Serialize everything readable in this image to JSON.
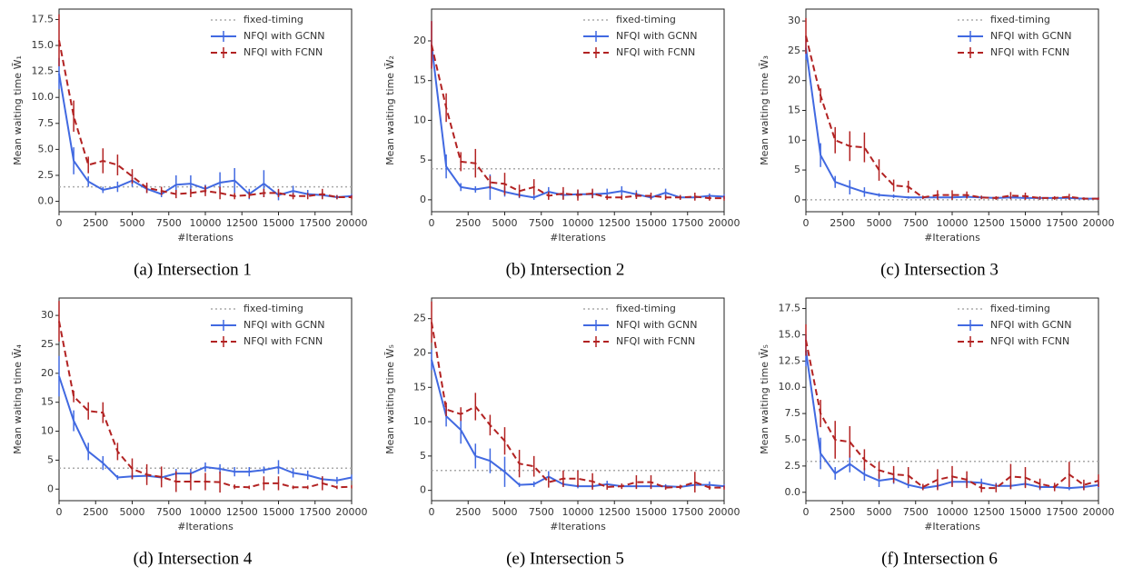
{
  "chart_data": [
    {
      "type": "line",
      "caption": "(a) Intersection 1",
      "y_label": "Mean waiting time W̄₁",
      "x_label": "#Iterations",
      "legend": "upper right",
      "x": [
        0,
        1000,
        2000,
        3000,
        4000,
        5000,
        6000,
        7000,
        8000,
        9000,
        10000,
        11000,
        12000,
        13000,
        14000,
        15000,
        16000,
        17000,
        18000,
        19000,
        20000
      ],
      "xlim": [
        0,
        20000
      ],
      "xticks": [
        0,
        2500,
        5000,
        7500,
        10000,
        12500,
        15000,
        17500,
        20000
      ],
      "ylim": [
        -1,
        18.5
      ],
      "yticks": [
        {
          "value": 0,
          "label": "0.0"
        },
        2.5,
        {
          "value": 5,
          "label": "5.0"
        },
        7.5,
        {
          "value": 10,
          "label": "10.0"
        },
        12.5,
        {
          "value": 15,
          "label": "15.0"
        },
        17.5
      ],
      "series": [
        {
          "name": "fixed-timing",
          "color": "#aaaaaa",
          "linestyle": "dotted",
          "values": [
            1.4,
            1.4,
            1.4,
            1.4,
            1.4,
            1.4,
            1.4,
            1.4,
            1.4,
            1.4,
            1.4,
            1.4,
            1.4,
            1.4,
            1.4,
            1.4,
            1.4,
            1.4,
            1.4,
            1.4,
            1.4
          ]
        },
        {
          "name": "NFQI with GCNN",
          "color": "#4169e1",
          "linestyle": "solid",
          "values": [
            12.3,
            3.9,
            1.9,
            1.1,
            1.4,
            2.0,
            1.2,
            0.7,
            1.6,
            1.7,
            1.2,
            1.8,
            2.0,
            0.7,
            1.7,
            0.6,
            1.0,
            0.7,
            0.6,
            0.4,
            0.5
          ],
          "errors": [
            1.5,
            1.3,
            0.5,
            0.3,
            0.5,
            0.6,
            0.4,
            0.3,
            0.9,
            0.8,
            0.4,
            1.0,
            1.2,
            0.5,
            1.3,
            0.5,
            0.5,
            0.4,
            0.3,
            0.2,
            0.2
          ]
        },
        {
          "name": "NFQI with FCNN",
          "color": "#b22222",
          "linestyle": "dashed",
          "values": [
            15.5,
            8.2,
            3.5,
            3.9,
            3.5,
            2.4,
            1.3,
            1.0,
            0.7,
            0.8,
            1.0,
            0.8,
            0.5,
            0.6,
            0.8,
            0.8,
            0.5,
            0.5,
            0.7,
            0.4,
            0.4
          ],
          "errors": [
            2.5,
            1.5,
            0.8,
            1.2,
            1.0,
            0.7,
            0.5,
            0.4,
            0.4,
            0.4,
            0.5,
            0.6,
            0.3,
            0.3,
            0.4,
            0.4,
            0.3,
            0.3,
            0.5,
            0.2,
            0.2
          ]
        }
      ]
    },
    {
      "type": "line",
      "caption": "(b) Intersection 2",
      "y_label": "Mean waiting time W̄₂",
      "x_label": "#Iterations",
      "legend": "upper right",
      "x": [
        0,
        1000,
        2000,
        3000,
        4000,
        5000,
        6000,
        7000,
        8000,
        9000,
        10000,
        11000,
        12000,
        13000,
        14000,
        15000,
        16000,
        17000,
        18000,
        19000,
        20000
      ],
      "xlim": [
        0,
        20000
      ],
      "xticks": [
        0,
        2500,
        5000,
        7500,
        10000,
        12500,
        15000,
        17500,
        20000
      ],
      "ylim": [
        -1.5,
        24
      ],
      "yticks": [
        0,
        5,
        10,
        15,
        20
      ],
      "series": [
        {
          "name": "fixed-timing",
          "color": "#aaaaaa",
          "linestyle": "dotted",
          "values": [
            3.9,
            3.9,
            3.9,
            3.9,
            3.9,
            3.9,
            3.9,
            3.9,
            3.9,
            3.9,
            3.9,
            3.9,
            3.9,
            3.9,
            3.9,
            3.9,
            3.9,
            3.9,
            3.9,
            3.9,
            3.9
          ]
        },
        {
          "name": "NFQI with GCNN",
          "color": "#4169e1",
          "linestyle": "solid",
          "values": [
            19.5,
            4.2,
            1.6,
            1.3,
            1.6,
            1.0,
            0.6,
            0.3,
            1.0,
            0.6,
            0.7,
            0.7,
            0.8,
            1.1,
            0.7,
            0.3,
            0.9,
            0.3,
            0.3,
            0.5,
            0.4
          ],
          "errors": [
            3,
            1.5,
            0.5,
            0.4,
            1.6,
            0.6,
            0.4,
            0.3,
            0.6,
            0.5,
            0.5,
            0.5,
            0.6,
            0.6,
            0.5,
            0.3,
            0.5,
            0.3,
            0.3,
            0.3,
            0.3
          ]
        },
        {
          "name": "NFQI with FCNN",
          "color": "#b22222",
          "linestyle": "dashed",
          "values": [
            19.5,
            11.6,
            4.8,
            4.6,
            2.2,
            2.0,
            1.1,
            1.6,
            0.5,
            0.8,
            0.6,
            0.8,
            0.3,
            0.3,
            0.5,
            0.5,
            0.3,
            0.3,
            0.4,
            0.2,
            0.2
          ],
          "errors": [
            3,
            1.8,
            1.2,
            1.8,
            0.8,
            1.4,
            0.8,
            1.0,
            0.5,
            0.8,
            0.7,
            0.6,
            0.3,
            0.3,
            0.4,
            0.4,
            0.3,
            0.3,
            0.5,
            0.3,
            0.3
          ]
        }
      ]
    },
    {
      "type": "line",
      "caption": "(c) Intersection 3",
      "y_label": "Mean waiting time W̄₃",
      "x_label": "#Iterations",
      "legend": "upper right",
      "x": [
        0,
        1000,
        2000,
        3000,
        4000,
        5000,
        6000,
        7000,
        8000,
        9000,
        10000,
        11000,
        12000,
        13000,
        14000,
        15000,
        16000,
        17000,
        18000,
        19000,
        20000
      ],
      "xlim": [
        0,
        20000
      ],
      "xticks": [
        0,
        2500,
        5000,
        7500,
        10000,
        12500,
        15000,
        17500,
        20000
      ],
      "ylim": [
        -2,
        32
      ],
      "yticks": [
        0,
        5,
        10,
        15,
        20,
        25,
        30
      ],
      "series": [
        {
          "name": "fixed-timing",
          "color": "#aaaaaa",
          "linestyle": "dotted",
          "values": [
            0,
            0,
            0,
            0,
            0,
            0,
            0,
            0,
            0,
            0,
            0,
            0,
            0,
            0,
            0,
            0,
            0,
            0,
            0,
            0,
            0
          ]
        },
        {
          "name": "NFQI with GCNN",
          "color": "#4169e1",
          "linestyle": "solid",
          "values": [
            25.5,
            7.5,
            3.0,
            2.1,
            1.3,
            0.8,
            0.6,
            0.4,
            0.4,
            0.4,
            0.4,
            0.5,
            0.4,
            0.3,
            0.4,
            0.3,
            0.3,
            0.3,
            0.3,
            0.2,
            0.2
          ],
          "errors": [
            2,
            2,
            1,
            1.2,
            0.8,
            0.3,
            0.3,
            0.2,
            0.2,
            0.2,
            0.2,
            0.2,
            0.2,
            0.2,
            0.2,
            0.2,
            0.2,
            0.2,
            0.2,
            0.2,
            0.2
          ]
        },
        {
          "name": "NFQI with FCNN",
          "color": "#b22222",
          "linestyle": "dashed",
          "values": [
            27.5,
            17.5,
            10.0,
            9.0,
            8.8,
            5.0,
            2.4,
            2.2,
            0.4,
            0.8,
            0.8,
            0.8,
            0.4,
            0.3,
            0.7,
            0.6,
            0.3,
            0.3,
            0.5,
            0.2,
            0.2
          ],
          "errors": [
            3,
            1.2,
            2.2,
            2.5,
            2.5,
            1.8,
            1.0,
            1.0,
            0.3,
            0.8,
            0.8,
            0.6,
            0.3,
            0.3,
            0.6,
            0.6,
            0.3,
            0.3,
            0.5,
            0.2,
            0.2
          ]
        }
      ]
    },
    {
      "type": "line",
      "caption": "(d) Intersection 4",
      "y_label": "Mean waiting time W̄₄",
      "x_label": "#Iterations",
      "legend": "upper right",
      "x": [
        0,
        1000,
        2000,
        3000,
        4000,
        5000,
        6000,
        7000,
        8000,
        9000,
        10000,
        11000,
        12000,
        13000,
        14000,
        15000,
        16000,
        17000,
        18000,
        19000,
        20000
      ],
      "xlim": [
        0,
        20000
      ],
      "xticks": [
        0,
        2500,
        5000,
        7500,
        10000,
        12500,
        15000,
        17500,
        20000
      ],
      "ylim": [
        -2,
        33
      ],
      "yticks": [
        0,
        5,
        10,
        15,
        20,
        25,
        30
      ],
      "series": [
        {
          "name": "fixed-timing",
          "color": "#aaaaaa",
          "linestyle": "dotted",
          "values": [
            3.6,
            3.6,
            3.6,
            3.6,
            3.6,
            3.6,
            3.6,
            3.6,
            3.6,
            3.6,
            3.6,
            3.6,
            3.6,
            3.6,
            3.6,
            3.6,
            3.6,
            3.6,
            3.6,
            3.6,
            3.6
          ]
        },
        {
          "name": "NFQI with GCNN",
          "color": "#4169e1",
          "linestyle": "solid",
          "values": [
            19.5,
            11.8,
            6.5,
            4.5,
            2.0,
            2.2,
            2.3,
            2.0,
            2.7,
            2.7,
            3.8,
            3.5,
            3.0,
            3.0,
            3.3,
            3.8,
            2.8,
            2.4,
            1.7,
            1.5,
            2.0
          ],
          "errors": [
            3.5,
            1.8,
            1.5,
            1.2,
            0.4,
            0.5,
            0.6,
            0.6,
            0.8,
            0.8,
            0.8,
            0.8,
            0.8,
            0.8,
            0.6,
            1.2,
            0.8,
            0.8,
            0.5,
            0.6,
            0.5
          ]
        },
        {
          "name": "NFQI with FCNN",
          "color": "#b22222",
          "linestyle": "dashed",
          "values": [
            29,
            16,
            13.5,
            13.2,
            6.5,
            3.5,
            2.5,
            2.1,
            1.3,
            1.3,
            1.3,
            1.2,
            0.4,
            0.3,
            1.0,
            1.0,
            0.3,
            0.3,
            1.0,
            0.3,
            0.4
          ],
          "errors": [
            3.5,
            1,
            1.5,
            1.8,
            1.5,
            1.8,
            1.8,
            1.8,
            1.8,
            1.5,
            1.5,
            1.8,
            0.4,
            0.3,
            1.2,
            1.2,
            0.3,
            0.3,
            1.2,
            0.3,
            0.3
          ]
        }
      ]
    },
    {
      "type": "line",
      "caption": "(e) Intersection 5",
      "y_label": "Mean waiting time W̄₅",
      "x_label": "#Iterations",
      "legend": "upper right",
      "x": [
        0,
        1000,
        2000,
        3000,
        4000,
        5000,
        6000,
        7000,
        8000,
        9000,
        10000,
        11000,
        12000,
        13000,
        14000,
        15000,
        16000,
        17000,
        18000,
        19000,
        20000
      ],
      "xlim": [
        0,
        20000
      ],
      "xticks": [
        0,
        2500,
        5000,
        7500,
        10000,
        12500,
        15000,
        17500,
        20000
      ],
      "ylim": [
        -1.5,
        28
      ],
      "yticks": [
        0,
        5,
        10,
        15,
        20,
        25
      ],
      "series": [
        {
          "name": "fixed-timing",
          "color": "#aaaaaa",
          "linestyle": "dotted",
          "values": [
            2.9,
            2.9,
            2.9,
            2.9,
            2.9,
            2.9,
            2.9,
            2.9,
            2.9,
            2.9,
            2.9,
            2.9,
            2.9,
            2.9,
            2.9,
            2.9,
            2.9,
            2.9,
            2.9,
            2.9,
            2.9
          ]
        },
        {
          "name": "NFQI with GCNN",
          "color": "#4169e1",
          "linestyle": "solid",
          "values": [
            19,
            10.8,
            8.8,
            5.0,
            4.3,
            2.7,
            0.8,
            0.9,
            2.0,
            0.9,
            0.6,
            0.6,
            0.9,
            0.6,
            0.6,
            0.6,
            0.6,
            0.5,
            0.8,
            0.8,
            0.6
          ],
          "errors": [
            1.5,
            1.5,
            2,
            1.8,
            1.8,
            2.2,
            0.3,
            0.4,
            0.8,
            0.4,
            0.3,
            0.3,
            0.5,
            0.3,
            0.3,
            0.3,
            0.3,
            0.3,
            0.5,
            0.5,
            0.3
          ]
        },
        {
          "name": "NFQI with FCNN",
          "color": "#b22222",
          "linestyle": "dashed",
          "values": [
            24.5,
            11.8,
            11.1,
            12.2,
            9.5,
            7.2,
            3.9,
            3.5,
            1.2,
            1.7,
            1.7,
            1.3,
            0.5,
            0.6,
            1.2,
            1.2,
            0.4,
            0.5,
            1.2,
            0.4,
            0.4
          ],
          "errors": [
            3,
            1,
            1,
            2,
            1.5,
            2,
            2,
            1.5,
            0.8,
            1.2,
            1.2,
            1.2,
            0.4,
            0.4,
            1.0,
            1.0,
            0.3,
            0.3,
            1.5,
            0.3,
            0.3
          ]
        }
      ]
    },
    {
      "type": "line",
      "caption": "(f) Intersection 6",
      "y_label": "Mean waiting time W̄₅",
      "x_label": "#Iterations",
      "legend": "upper right",
      "x": [
        0,
        1000,
        2000,
        3000,
        4000,
        5000,
        6000,
        7000,
        8000,
        9000,
        10000,
        11000,
        12000,
        13000,
        14000,
        15000,
        16000,
        17000,
        18000,
        19000,
        20000
      ],
      "xlim": [
        0,
        20000
      ],
      "xticks": [
        0,
        2500,
        5000,
        7500,
        10000,
        12500,
        15000,
        17500,
        20000
      ],
      "ylim": [
        -0.8,
        18.5
      ],
      "yticks": [
        {
          "value": 0,
          "label": "0.0"
        },
        2.5,
        {
          "value": 5,
          "label": "5.0"
        },
        7.5,
        {
          "value": 10,
          "label": "10.0"
        },
        12.5,
        {
          "value": 15,
          "label": "15.0"
        },
        17.5
      ],
      "series": [
        {
          "name": "fixed-timing",
          "color": "#aaaaaa",
          "linestyle": "dotted",
          "values": [
            2.95,
            2.95,
            2.95,
            2.95,
            2.95,
            2.95,
            2.95,
            2.95,
            2.95,
            2.95,
            2.95,
            2.95,
            2.95,
            2.95,
            2.95,
            2.95,
            2.95,
            2.95,
            2.95,
            2.95,
            2.95
          ]
        },
        {
          "name": "NFQI with GCNN",
          "color": "#4169e1",
          "linestyle": "solid",
          "values": [
            13.5,
            3.7,
            1.8,
            2.7,
            1.7,
            1.1,
            1.3,
            0.7,
            0.4,
            0.6,
            1.0,
            1.0,
            0.9,
            0.6,
            0.6,
            0.8,
            0.5,
            0.5,
            0.4,
            0.5,
            0.7
          ],
          "errors": [
            1.5,
            1.5,
            0.6,
            0.8,
            0.6,
            0.6,
            0.5,
            0.3,
            0.2,
            0.3,
            0.4,
            0.4,
            0.4,
            0.3,
            0.3,
            0.3,
            0.3,
            0.3,
            0.2,
            0.3,
            0.3
          ]
        },
        {
          "name": "NFQI with FCNN",
          "color": "#b22222",
          "linestyle": "dashed",
          "values": [
            14.5,
            7.5,
            5.0,
            4.8,
            3.1,
            2.1,
            1.7,
            1.6,
            0.5,
            1.2,
            1.5,
            1.2,
            0.4,
            0.4,
            1.5,
            1.4,
            0.8,
            0.5,
            1.7,
            0.7,
            1.1
          ],
          "errors": [
            1.5,
            1.3,
            1.8,
            1.5,
            1.0,
            0.8,
            0.8,
            0.8,
            0.3,
            1.0,
            1.0,
            0.8,
            0.4,
            0.4,
            1.2,
            1.0,
            0.5,
            0.4,
            1.2,
            0.5,
            0.6
          ]
        }
      ]
    }
  ]
}
